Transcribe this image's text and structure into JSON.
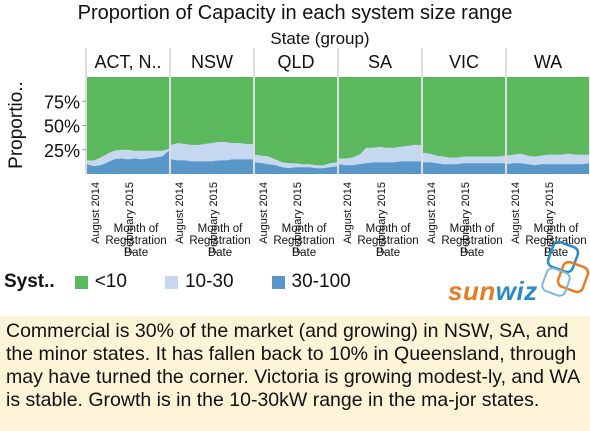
{
  "title": "Proportion of Capacity in each system size range",
  "chart_data": {
    "type": "area",
    "stacked": true,
    "facet_label": "State (group)",
    "ylabel": "Proportio..",
    "yticks": [
      "75%",
      "50%",
      "25%"
    ],
    "ytick_values": [
      0.75,
      0.5,
      0.25
    ],
    "ylim": [
      0,
      1
    ],
    "xlabel": "Month of Registration Date",
    "xticks": [
      "August 2014",
      "February 2015"
    ],
    "grid": false,
    "legend": {
      "title": "Syst..",
      "placement": "bottom",
      "entries": [
        {
          "name": "<10",
          "color": "#5bb85d"
        },
        {
          "name": "10-30",
          "color": "#c6d8ef"
        },
        {
          "name": "30-100",
          "color": "#5a97c9"
        }
      ]
    },
    "panels": [
      {
        "name": "ACT, N..",
        "small": [
          0.1,
          0.08,
          0.09,
          0.12,
          0.15,
          0.16,
          0.15,
          0.16,
          0.15,
          0.16,
          0.17,
          0.18,
          0.24
        ],
        "total": [
          0.14,
          0.14,
          0.17,
          0.21,
          0.24,
          0.25,
          0.25,
          0.24,
          0.24,
          0.24,
          0.24,
          0.24,
          0.26
        ]
      },
      {
        "name": "NSW",
        "small": [
          0.15,
          0.14,
          0.14,
          0.13,
          0.13,
          0.13,
          0.13,
          0.14,
          0.14,
          0.15,
          0.15,
          0.15,
          0.15
        ],
        "total": [
          0.3,
          0.32,
          0.31,
          0.3,
          0.3,
          0.31,
          0.32,
          0.33,
          0.33,
          0.32,
          0.32,
          0.31,
          0.31
        ]
      },
      {
        "name": "QLD",
        "small": [
          0.12,
          0.11,
          0.1,
          0.09,
          0.07,
          0.06,
          0.07,
          0.07,
          0.07,
          0.06,
          0.06,
          0.07,
          0.08
        ],
        "total": [
          0.2,
          0.19,
          0.18,
          0.15,
          0.12,
          0.11,
          0.11,
          0.1,
          0.1,
          0.09,
          0.09,
          0.11,
          0.12
        ]
      },
      {
        "name": "SA",
        "small": [
          0.1,
          0.09,
          0.09,
          0.1,
          0.11,
          0.12,
          0.12,
          0.12,
          0.12,
          0.13,
          0.13,
          0.13,
          0.13
        ],
        "total": [
          0.16,
          0.16,
          0.17,
          0.2,
          0.27,
          0.27,
          0.28,
          0.27,
          0.27,
          0.28,
          0.29,
          0.3,
          0.3
        ]
      },
      {
        "name": "VIC",
        "small": [
          0.12,
          0.12,
          0.11,
          0.1,
          0.1,
          0.1,
          0.11,
          0.11,
          0.11,
          0.11,
          0.11,
          0.11,
          0.11
        ],
        "total": [
          0.22,
          0.21,
          0.19,
          0.18,
          0.17,
          0.17,
          0.18,
          0.18,
          0.18,
          0.18,
          0.18,
          0.18,
          0.19
        ]
      },
      {
        "name": "WA",
        "small": [
          0.1,
          0.11,
          0.11,
          0.1,
          0.09,
          0.1,
          0.1,
          0.1,
          0.1,
          0.1,
          0.1,
          0.1,
          0.11
        ],
        "total": [
          0.19,
          0.2,
          0.21,
          0.19,
          0.18,
          0.19,
          0.2,
          0.2,
          0.2,
          0.21,
          0.2,
          0.2,
          0.2
        ]
      }
    ]
  },
  "logo": {
    "text_part1": "sun",
    "text_part2": "wiz",
    "color1": "#e97b22",
    "color2": "#2a8ac8"
  },
  "caption": "Commercial is 30% of the market (and growing) in NSW, SA, and the minor states. It has fallen back to 10% in Queensland, through may have turned the corner. Victoria is growing modest-ly, and WA is stable. Growth is in the 10-30kW range in the ma-jor states."
}
